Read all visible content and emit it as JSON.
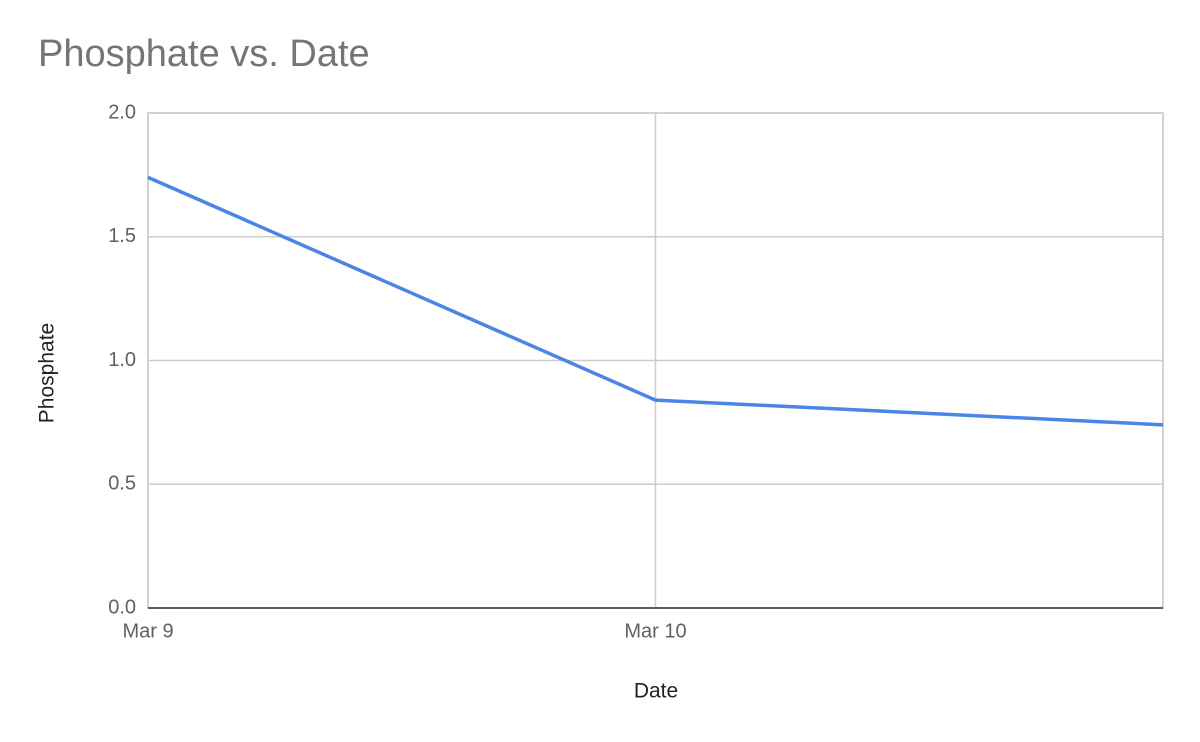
{
  "chart_data": {
    "type": "line",
    "title": "Phosphate vs. Date",
    "x_label": "Date",
    "y_label": "Phosphate",
    "categories": [
      "Mar 9",
      "Mar 10",
      null
    ],
    "values": [
      1.74,
      0.84,
      0.74
    ],
    "color": "#4a86e8",
    "ylim": [
      0,
      2
    ],
    "yticks": [
      {
        "value": 0,
        "label": "0.0"
      },
      {
        "value": 0.5,
        "label": "0.5"
      },
      {
        "value": 1,
        "label": "1.0"
      },
      {
        "value": 1.5,
        "label": "1.5"
      },
      {
        "value": 2,
        "label": "2.0"
      }
    ],
    "grid": true
  }
}
